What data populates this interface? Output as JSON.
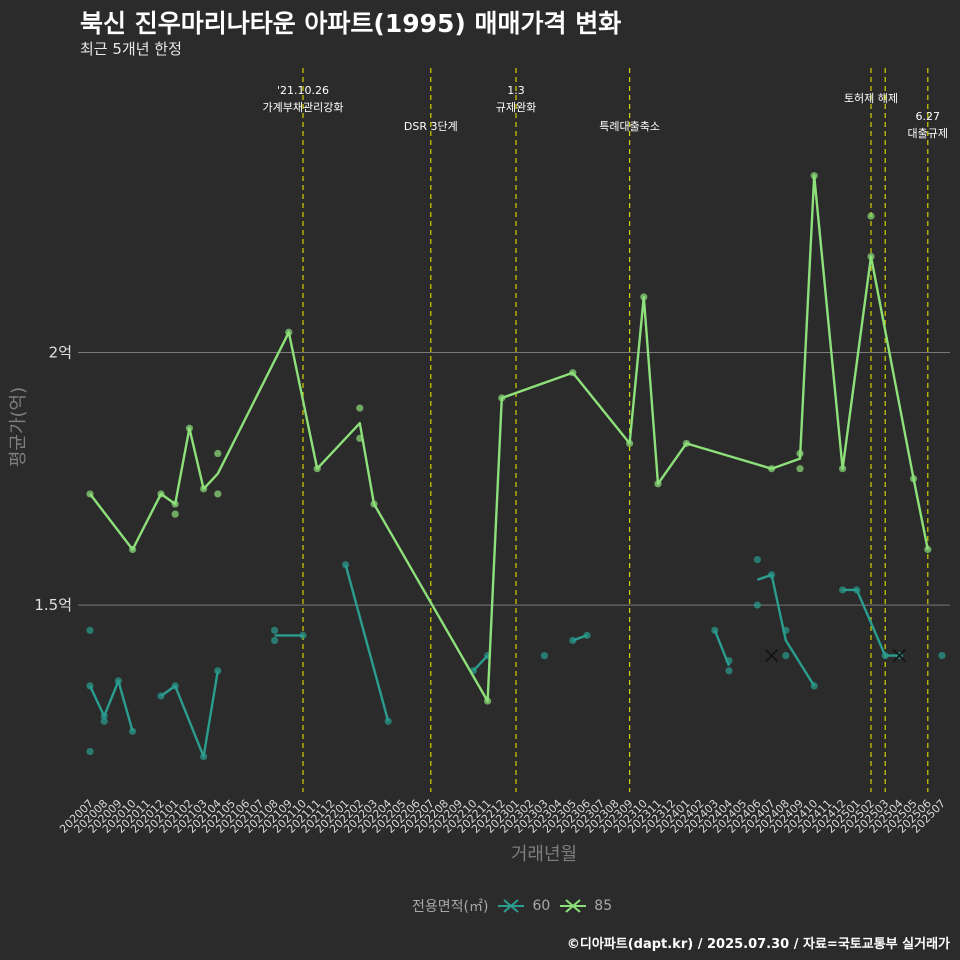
{
  "header": {
    "title": "북신 진우마리나타운 아파트(1995) 매매가격 변화",
    "subtitle": "최근 5개년 한정"
  },
  "caption": "©디아파트(dapt.kr) / 2025.07.30 / 자료=국토교통부 실거래가",
  "colors": {
    "background": "#2b2b2b",
    "series_60": "#2a9d8f",
    "series_85": "#8ee07a",
    "event_line": "#d4d000",
    "grid": "#7a7a7a"
  },
  "chart_data": {
    "type": "line",
    "xlabel": "거래년월",
    "ylabel": "평균가(억)",
    "x_categories": [
      "202007",
      "202008",
      "202009",
      "202010",
      "202011",
      "202012",
      "202101",
      "202102",
      "202103",
      "202104",
      "202105",
      "202106",
      "202107",
      "202108",
      "202109",
      "202110",
      "202111",
      "202112",
      "202201",
      "202202",
      "202203",
      "202204",
      "202205",
      "202206",
      "202207",
      "202208",
      "202209",
      "202210",
      "202211",
      "202212",
      "202301",
      "202302",
      "202303",
      "202304",
      "202305",
      "202306",
      "202307",
      "202308",
      "202309",
      "202310",
      "202311",
      "202312",
      "202401",
      "202402",
      "202403",
      "202404",
      "202405",
      "202406",
      "202407",
      "202408",
      "202409",
      "202410",
      "202411",
      "202412",
      "202501",
      "202502",
      "202503",
      "202504",
      "202505",
      "202506",
      "202507"
    ],
    "y_ticks": [
      {
        "value": 2.0,
        "label": "2억"
      },
      {
        "value": 1.5,
        "label": "1.5억"
      }
    ],
    "ylim": [
      1.13,
      2.575
    ],
    "grid": "horizontal",
    "legend": {
      "title": "전용면적(㎡)",
      "position": "bottom",
      "entries": [
        "60",
        "85"
      ]
    },
    "series": [
      {
        "name": "60",
        "line": [
          [
            [
              "202007",
              1.34
            ],
            [
              "202008",
              1.28
            ],
            [
              "202009",
              1.35
            ],
            [
              "202010",
              1.25
            ]
          ],
          [
            [
              "202012",
              1.32
            ],
            [
              "202101",
              1.34
            ],
            [
              "202103",
              1.2
            ],
            [
              "202104",
              1.37
            ]
          ],
          [
            [
              "202108",
              1.44
            ],
            [
              "202110",
              1.44
            ]
          ],
          [
            [
              "202201",
              1.58
            ],
            [
              "202204",
              1.27
            ]
          ],
          [
            [
              "202210",
              1.37
            ],
            [
              "202211",
              1.4
            ]
          ],
          [
            [
              "202305",
              1.43
            ],
            [
              "202306",
              1.44
            ]
          ],
          [
            [
              "202403",
              1.45
            ],
            [
              "202404",
              1.38
            ]
          ],
          [
            [
              "202406",
              1.55
            ],
            [
              "202407",
              1.56
            ],
            [
              "202408",
              1.43
            ],
            [
              "202410",
              1.34
            ]
          ],
          [
            [
              "202412",
              1.53
            ],
            [
              "202501",
              1.53
            ],
            [
              "202503",
              1.4
            ],
            [
              "202504",
              1.4
            ]
          ]
        ],
        "points": [
          [
            "202007",
            1.45
          ],
          [
            "202007",
            1.34
          ],
          [
            "202007",
            1.21
          ],
          [
            "202008",
            1.28
          ],
          [
            "202008",
            1.27
          ],
          [
            "202009",
            1.35
          ],
          [
            "202010",
            1.25
          ],
          [
            "202012",
            1.32
          ],
          [
            "202101",
            1.34
          ],
          [
            "202103",
            1.2
          ],
          [
            "202104",
            1.37
          ],
          [
            "202108",
            1.45
          ],
          [
            "202108",
            1.43
          ],
          [
            "202110",
            1.44
          ],
          [
            "202201",
            1.58
          ],
          [
            "202204",
            1.27
          ],
          [
            "202210",
            1.37
          ],
          [
            "202211",
            1.4
          ],
          [
            "202303",
            1.4
          ],
          [
            "202305",
            1.43
          ],
          [
            "202306",
            1.44
          ],
          [
            "202403",
            1.45
          ],
          [
            "202404",
            1.39
          ],
          [
            "202404",
            1.37
          ],
          [
            "202406",
            1.59
          ],
          [
            "202406",
            1.5
          ],
          [
            "202407",
            1.56
          ],
          [
            "202408",
            1.45
          ],
          [
            "202408",
            1.4
          ],
          [
            "202410",
            1.34
          ],
          [
            "202412",
            1.53
          ],
          [
            "202501",
            1.53
          ],
          [
            "202503",
            1.4
          ],
          [
            "202504",
            1.4
          ],
          [
            "202507",
            1.4
          ]
        ],
        "crosses": [
          [
            "202407",
            1.4
          ],
          [
            "202504",
            1.4
          ]
        ]
      },
      {
        "name": "85",
        "line": [
          [
            [
              "202007",
              1.72
            ],
            [
              "202010",
              1.61
            ],
            [
              "202012",
              1.72
            ],
            [
              "202101",
              1.7
            ],
            [
              "202102",
              1.85
            ],
            [
              "202103",
              1.73
            ],
            [
              "202104",
              1.76
            ],
            [
              "202109",
              2.04
            ],
            [
              "202111",
              1.77
            ],
            [
              "202202",
              1.86
            ],
            [
              "202203",
              1.7
            ],
            [
              "202211",
              1.31
            ],
            [
              "202212",
              1.91
            ],
            [
              "202305",
              1.96
            ],
            [
              "202309",
              1.82
            ],
            [
              "202310",
              2.11
            ],
            [
              "202311",
              1.74
            ],
            [
              "202401",
              1.82
            ],
            [
              "202407",
              1.77
            ],
            [
              "202409",
              1.79
            ],
            [
              "202410",
              2.35
            ],
            [
              "202412",
              1.77
            ],
            [
              "202502",
              2.19
            ],
            [
              "202505",
              1.75
            ],
            [
              "202506",
              1.61
            ]
          ]
        ],
        "points": [
          [
            "202007",
            1.72
          ],
          [
            "202010",
            1.61
          ],
          [
            "202012",
            1.72
          ],
          [
            "202101",
            1.7
          ],
          [
            "202101",
            1.68
          ],
          [
            "202102",
            1.85
          ],
          [
            "202103",
            1.73
          ],
          [
            "202104",
            1.8
          ],
          [
            "202104",
            1.72
          ],
          [
            "202109",
            2.04
          ],
          [
            "202111",
            1.77
          ],
          [
            "202202",
            1.89
          ],
          [
            "202202",
            1.83
          ],
          [
            "202203",
            1.7
          ],
          [
            "202211",
            1.31
          ],
          [
            "202212",
            1.91
          ],
          [
            "202305",
            1.96
          ],
          [
            "202309",
            1.82
          ],
          [
            "202310",
            2.11
          ],
          [
            "202311",
            1.74
          ],
          [
            "202401",
            1.82
          ],
          [
            "202407",
            1.77
          ],
          [
            "202409",
            1.8
          ],
          [
            "202409",
            1.77
          ],
          [
            "202410",
            2.35
          ],
          [
            "202412",
            1.77
          ],
          [
            "202502",
            2.27
          ],
          [
            "202502",
            2.19
          ],
          [
            "202505",
            1.75
          ],
          [
            "202506",
            1.61
          ]
        ]
      }
    ],
    "events": [
      {
        "at": "202110",
        "row": 0,
        "lines": [
          "'21.10.26",
          "가계부채관리강화"
        ]
      },
      {
        "at": "202207",
        "row": 1,
        "lines": [
          "DSR 3단계"
        ]
      },
      {
        "at": "202301",
        "row": 0,
        "lines": [
          "1.3",
          "규제완화"
        ]
      },
      {
        "at": "202309",
        "row": 1,
        "lines": [
          "특례대출축소"
        ]
      },
      {
        "at": "202502",
        "row": 0,
        "lines": [
          "토허제 해제"
        ]
      },
      {
        "at": "202503",
        "row": -1,
        "lines": []
      },
      {
        "at": "202506",
        "row": 1,
        "lines": [
          "6.27",
          "대출규제"
        ]
      }
    ]
  }
}
